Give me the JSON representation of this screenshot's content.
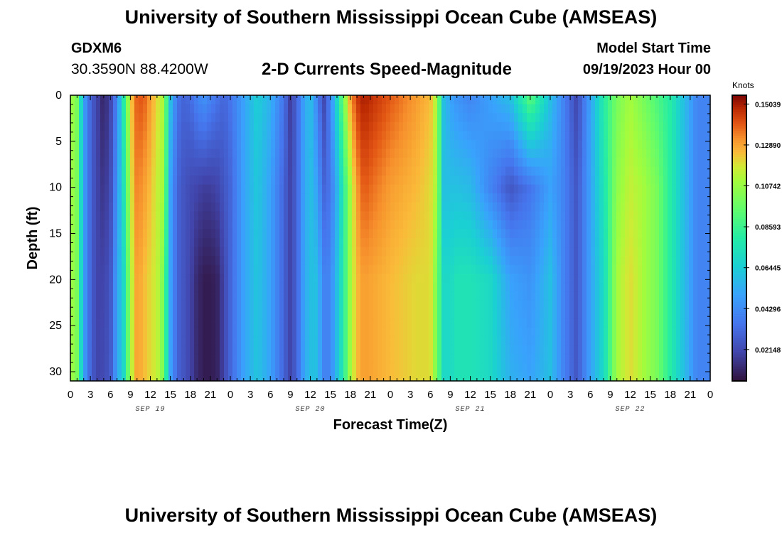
{
  "header": {
    "title": "University of Southern Mississippi Ocean Cube (AMSEAS)",
    "station": "GDXM6",
    "location": "30.3590N  88.4200W",
    "product": "2-D Currents Speed-Magnitude",
    "start_label": "Model Start Time",
    "start_value": "09/19/2023 Hour 00"
  },
  "footer": {
    "title": "University of Southern Mississippi Ocean Cube (AMSEAS)"
  },
  "colors": {
    "axis": "#000000",
    "low": "#30123b",
    "high": "#7a0403"
  },
  "chart_data": {
    "type": "heatmap",
    "title": "2-D Currents Speed-Magnitude",
    "xlabel": "Forecast Time(Z)",
    "ylabel": "Depth (ft)",
    "x_unit": "hours from model start",
    "xlim": [
      0,
      96
    ],
    "ylim": [
      31,
      0
    ],
    "x_tick_labels": [
      "0",
      "3",
      "6",
      "9",
      "12",
      "15",
      "18",
      "21",
      "0",
      "3",
      "6",
      "9",
      "12",
      "15",
      "18",
      "21",
      "0",
      "3",
      "6",
      "9",
      "12",
      "15",
      "18",
      "21",
      "0",
      "3",
      "6",
      "9",
      "12",
      "15",
      "18",
      "21",
      "0"
    ],
    "day_labels": [
      {
        "label": "SEP 19",
        "hour": 12
      },
      {
        "label": "SEP 20",
        "hour": 36
      },
      {
        "label": "SEP 21",
        "hour": 60
      },
      {
        "label": "SEP 22",
        "hour": 84
      }
    ],
    "y_ticks": [
      0,
      5,
      10,
      15,
      20,
      25,
      30
    ],
    "colorbar": {
      "unit": "Knots",
      "vmin": 0.005,
      "vmax": 0.155,
      "tick_values": [
        0.15039,
        0.1289,
        0.10742,
        0.08593,
        0.06445,
        0.04296,
        0.02148
      ],
      "tick_labels": [
        "0.15039",
        "0.12890",
        "0.10742",
        "0.08593",
        "0.06445",
        "0.04296",
        "0.02148"
      ]
    },
    "depth_levels": [
      0,
      10,
      20,
      31
    ],
    "profile_hours": [
      0,
      1,
      2,
      3,
      4,
      5,
      6,
      7,
      8,
      9,
      10,
      11,
      12,
      13,
      14,
      15,
      16,
      17,
      18,
      19,
      20,
      21,
      22,
      23,
      24,
      26,
      28,
      30,
      32,
      33,
      34,
      35,
      36,
      37,
      38,
      39,
      40,
      41,
      42,
      43,
      44,
      48,
      52,
      54,
      55,
      56,
      57,
      58,
      60,
      63,
      66,
      69,
      72,
      74,
      76,
      78,
      80,
      82,
      84,
      86,
      88,
      90,
      92,
      94,
      96
    ],
    "speed_profiles": [
      [
        0.11,
        0.11,
        0.11,
        0.11
      ],
      [
        0.1,
        0.1,
        0.1,
        0.1
      ],
      [
        0.05,
        0.05,
        0.05,
        0.05
      ],
      [
        0.03,
        0.03,
        0.03,
        0.03
      ],
      [
        0.02,
        0.02,
        0.02,
        0.02
      ],
      [
        0.01,
        0.015,
        0.02,
        0.022
      ],
      [
        0.02,
        0.022,
        0.025,
        0.026
      ],
      [
        0.04,
        0.045,
        0.05,
        0.05
      ],
      [
        0.08,
        0.075,
        0.07,
        0.07
      ],
      [
        0.12,
        0.115,
        0.11,
        0.11
      ],
      [
        0.14,
        0.135,
        0.13,
        0.13
      ],
      [
        0.14,
        0.13,
        0.125,
        0.125
      ],
      [
        0.13,
        0.125,
        0.12,
        0.12
      ],
      [
        0.12,
        0.115,
        0.115,
        0.115
      ],
      [
        0.11,
        0.11,
        0.1,
        0.1
      ],
      [
        0.06,
        0.05,
        0.05,
        0.05
      ],
      [
        0.035,
        0.03,
        0.03,
        0.03
      ],
      [
        0.03,
        0.025,
        0.025,
        0.025
      ],
      [
        0.032,
        0.022,
        0.02,
        0.02
      ],
      [
        0.04,
        0.02,
        0.012,
        0.012
      ],
      [
        0.045,
        0.018,
        0.008,
        0.008
      ],
      [
        0.04,
        0.018,
        0.008,
        0.008
      ],
      [
        0.035,
        0.02,
        0.01,
        0.01
      ],
      [
        0.03,
        0.025,
        0.02,
        0.02
      ],
      [
        0.035,
        0.03,
        0.03,
        0.03
      ],
      [
        0.05,
        0.05,
        0.05,
        0.05
      ],
      [
        0.065,
        0.063,
        0.062,
        0.062
      ],
      [
        0.055,
        0.05,
        0.05,
        0.05
      ],
      [
        0.035,
        0.03,
        0.03,
        0.03
      ],
      [
        0.018,
        0.02,
        0.02,
        0.02
      ],
      [
        0.03,
        0.03,
        0.03,
        0.03
      ],
      [
        0.05,
        0.05,
        0.05,
        0.05
      ],
      [
        0.06,
        0.06,
        0.06,
        0.06
      ],
      [
        0.04,
        0.05,
        0.06,
        0.06
      ],
      [
        0.02,
        0.03,
        0.04,
        0.04
      ],
      [
        0.04,
        0.035,
        0.04,
        0.04
      ],
      [
        0.07,
        0.055,
        0.06,
        0.06
      ],
      [
        0.1,
        0.08,
        0.08,
        0.08
      ],
      [
        0.13,
        0.11,
        0.11,
        0.11
      ],
      [
        0.145,
        0.13,
        0.125,
        0.125
      ],
      [
        0.15,
        0.14,
        0.13,
        0.13
      ],
      [
        0.14,
        0.13,
        0.125,
        0.125
      ],
      [
        0.13,
        0.125,
        0.12,
        0.12
      ],
      [
        0.125,
        0.12,
        0.12,
        0.12
      ],
      [
        0.11,
        0.11,
        0.1,
        0.1
      ],
      [
        0.06,
        0.06,
        0.07,
        0.07
      ],
      [
        0.05,
        0.06,
        0.07,
        0.07
      ],
      [
        0.045,
        0.06,
        0.075,
        0.075
      ],
      [
        0.04,
        0.058,
        0.075,
        0.075
      ],
      [
        0.05,
        0.04,
        0.07,
        0.07
      ],
      [
        0.06,
        0.025,
        0.05,
        0.055
      ],
      [
        0.095,
        0.035,
        0.045,
        0.05
      ],
      [
        0.06,
        0.05,
        0.06,
        0.06
      ],
      [
        0.04,
        0.04,
        0.04,
        0.04
      ],
      [
        0.02,
        0.025,
        0.025,
        0.025
      ],
      [
        0.05,
        0.05,
        0.05,
        0.05
      ],
      [
        0.08,
        0.075,
        0.07,
        0.07
      ],
      [
        0.1,
        0.105,
        0.11,
        0.11
      ],
      [
        0.11,
        0.115,
        0.12,
        0.12
      ],
      [
        0.1,
        0.11,
        0.11,
        0.11
      ],
      [
        0.09,
        0.1,
        0.1,
        0.1
      ],
      [
        0.08,
        0.08,
        0.08,
        0.08
      ],
      [
        0.06,
        0.06,
        0.06,
        0.06
      ],
      [
        0.04,
        0.04,
        0.04,
        0.04
      ],
      [
        0.04,
        0.04,
        0.04,
        0.04
      ]
    ]
  }
}
